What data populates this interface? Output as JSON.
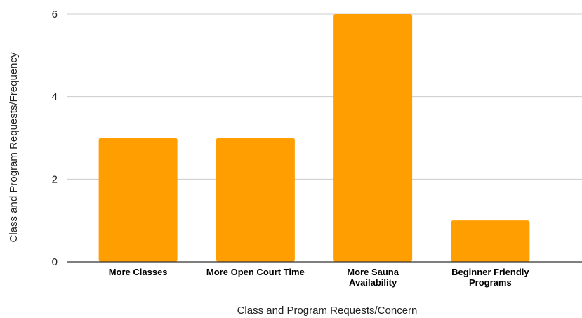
{
  "chart_data": {
    "type": "bar",
    "categories": [
      [
        "More Classes"
      ],
      [
        "More Open Court Time"
      ],
      [
        "More Sauna",
        "Availability"
      ],
      [
        "Beginner Friendly",
        "Programs"
      ]
    ],
    "values": [
      3,
      3,
      6,
      1
    ],
    "xlabel": "Class and Program Requests/Concern",
    "ylabel": "Class and Program Requests/Frequency",
    "ylim": [
      0,
      6
    ],
    "yticks": [
      0,
      2,
      4,
      6
    ],
    "grid": true,
    "legend": "none",
    "colors": {
      "bar": "#ff9e00",
      "grid": "#cccccc",
      "axis": "#333333"
    }
  }
}
